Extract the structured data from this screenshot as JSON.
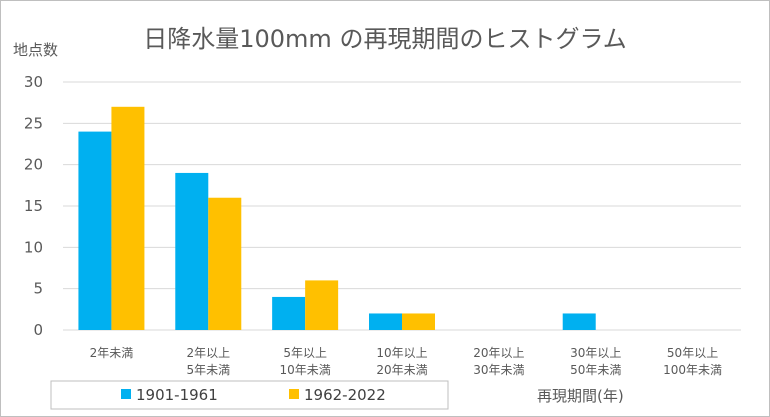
{
  "chart_data": {
    "type": "bar",
    "title": "日降水量100mm の再現期間のヒストグラム",
    "ylabel": "地点数",
    "xlabel": "再現期間(年)",
    "ylim": [
      0,
      30
    ],
    "yticks": [
      0,
      5,
      10,
      15,
      20,
      25,
      30
    ],
    "grid": true,
    "legend_position": "bottom-left",
    "categories": [
      [
        "2年未満"
      ],
      [
        "2年以上",
        "5年未満"
      ],
      [
        "5年以上",
        "10年未満"
      ],
      [
        "10年以上",
        "20年未満"
      ],
      [
        "20年以上",
        "30年未満"
      ],
      [
        "30年以上",
        "50年未満"
      ],
      [
        "50年以上",
        "100年未満"
      ]
    ],
    "series": [
      {
        "name": "1901-1961",
        "color": "#00b0f0",
        "values": [
          24,
          19,
          4,
          2,
          0,
          2,
          0
        ]
      },
      {
        "name": "1962-2022",
        "color": "#ffc000",
        "values": [
          27,
          16,
          6,
          2,
          0,
          0,
          0
        ]
      }
    ]
  }
}
